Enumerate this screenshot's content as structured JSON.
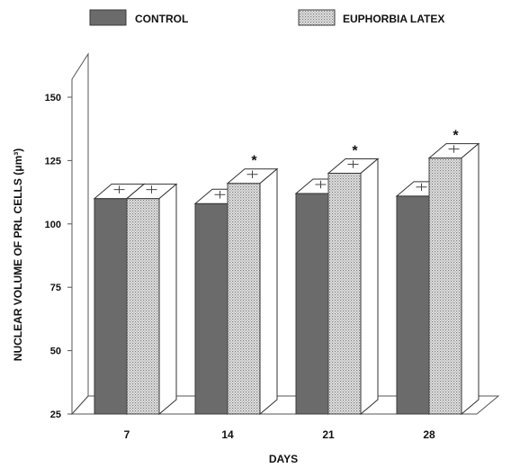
{
  "chart_data": {
    "type": "bar",
    "title": "",
    "xlabel": "DAYS",
    "ylabel": "NUCLEAR VOLUME OF PRL CELLS (μm³)",
    "categories": [
      "7",
      "14",
      "21",
      "28"
    ],
    "ylim": [
      25,
      150
    ],
    "yticks": [
      "150",
      "125",
      "100",
      "75",
      "50",
      "25"
    ],
    "series": [
      {
        "name": "CONTROL",
        "values": [
          110,
          108,
          112,
          111
        ],
        "errors": [
          1.5,
          1.5,
          1.5,
          1.5
        ],
        "pattern": "solid-gray"
      },
      {
        "name": "EUPHORBIA LATEX",
        "values": [
          110,
          116,
          120,
          126
        ],
        "errors": [
          1.5,
          1.5,
          1.5,
          1.5
        ],
        "pattern": "dotted",
        "significant": [
          false,
          true,
          true,
          true
        ]
      }
    ],
    "significance_marker": "*",
    "legend_position": "top",
    "grid": false,
    "three_d": true
  },
  "colors": {
    "control_fill": "#6b6b6b",
    "control_stroke": "#3a3a3a",
    "latex_fill_base": "#e8e8e8",
    "latex_dot": "#7a7a7a",
    "axis": "#555555"
  }
}
